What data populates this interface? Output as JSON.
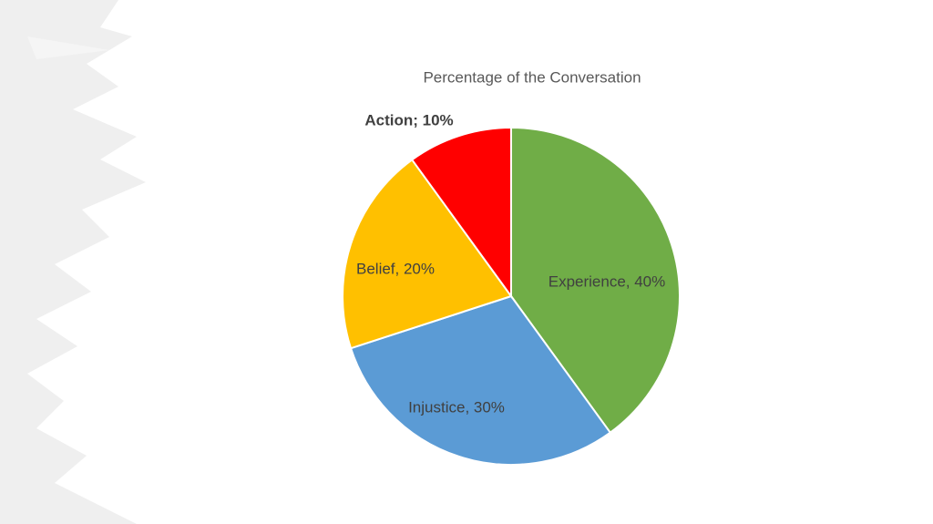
{
  "chart_data": {
    "type": "pie",
    "title": "Percentage of the Conversation",
    "values": [
      40,
      30,
      20,
      10
    ],
    "value_labels": [
      "Experience, 40%",
      "Injustice, 30%",
      "Belief, 20%",
      "Action; 10%"
    ],
    "colors": [
      "#70ad47",
      "#5b9bd5",
      "#ffc000",
      "#ff0000"
    ]
  }
}
